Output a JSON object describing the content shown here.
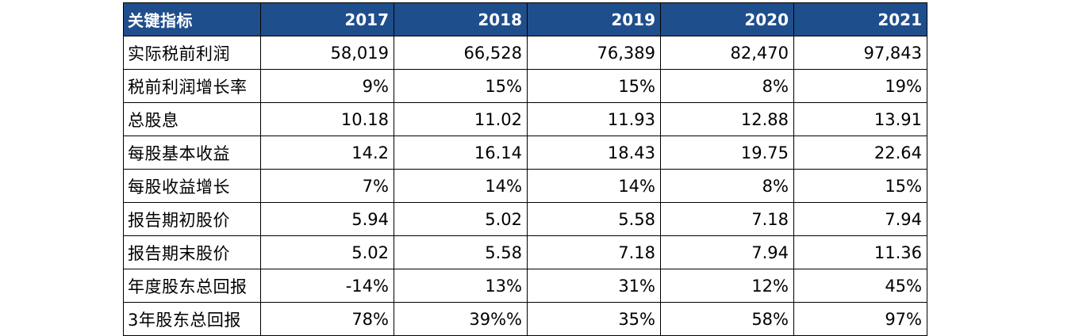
{
  "table": {
    "header": {
      "label": "关键指标",
      "years": [
        "2017",
        "2018",
        "2019",
        "2020",
        "2021"
      ]
    },
    "rows": [
      {
        "label": "实际税前利润",
        "values": [
          "58,019",
          "66,528",
          "76,389",
          "82,470",
          "97,843"
        ]
      },
      {
        "label": "税前利润增长率",
        "values": [
          "9%",
          "15%",
          "15%",
          "8%",
          "19%"
        ]
      },
      {
        "label": "总股息",
        "values": [
          "10.18",
          "11.02",
          "11.93",
          "12.88",
          "13.91"
        ]
      },
      {
        "label": "每股基本收益",
        "values": [
          "14.2",
          "16.14",
          "18.43",
          "19.75",
          "22.64"
        ]
      },
      {
        "label": "每股收益增长",
        "values": [
          "7%",
          "14%",
          "14%",
          "8%",
          "15%"
        ]
      },
      {
        "label": "报告期初股价",
        "values": [
          "5.94",
          "5.02",
          "5.58",
          "7.18",
          "7.94"
        ]
      },
      {
        "label": "报告期末股价",
        "values": [
          "5.02",
          "5.58",
          "7.18",
          "7.94",
          "11.36"
        ]
      },
      {
        "label": "年度股东总回报",
        "values": [
          "-14%",
          "13%",
          "31%",
          "12%",
          "45%"
        ]
      },
      {
        "label": "3年股东总回报",
        "values": [
          "78%",
          "39%%",
          "35%",
          "58%",
          "97%"
        ]
      }
    ],
    "colors": {
      "header_bg": "#1f4e8c",
      "header_text": "#ffffff",
      "border": "#000000"
    }
  }
}
